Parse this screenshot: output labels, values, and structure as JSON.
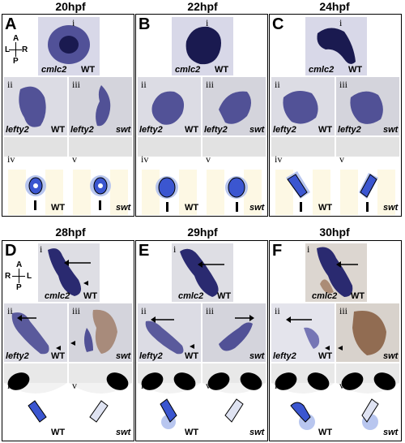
{
  "headers": [
    "20hpf",
    "22hpf",
    "24hpf",
    "28hpf",
    "29hpf",
    "30hpf"
  ],
  "panel_letters": [
    "A",
    "B",
    "C",
    "D",
    "E",
    "F"
  ],
  "roman": [
    "i",
    "ii",
    "iii",
    "iv",
    "v"
  ],
  "genes": {
    "cmlc2": "cmlc2",
    "lefty2": "lefty2"
  },
  "genotypes": {
    "wt": "WT",
    "swt": "swt"
  },
  "axes_top": {
    "a": "A",
    "p": "P",
    "l": "L",
    "r": "R"
  },
  "axes_bottom": {
    "a": "A",
    "p": "P",
    "l": "L",
    "r": "R"
  }
}
